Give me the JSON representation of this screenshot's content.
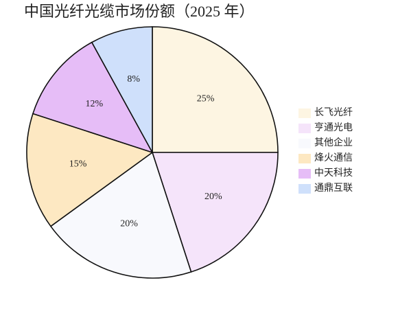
{
  "chart_data": {
    "type": "pie",
    "title": "中国光纤光缆市场份额（2025 年）",
    "categories": [
      "长飞光纤",
      "亨通光电",
      "其他企业",
      "烽火通信",
      "中天科技",
      "通鼎互联"
    ],
    "values": [
      25,
      20,
      20,
      15,
      12,
      8
    ],
    "value_labels": [
      "25%",
      "20%",
      "20%",
      "15%",
      "12%",
      "8%"
    ],
    "colors": [
      "#fdf5e2",
      "#f5e4fa",
      "#f8f9fd",
      "#fde8c2",
      "#e6bdf7",
      "#cfe0fb"
    ],
    "legend": "right"
  }
}
